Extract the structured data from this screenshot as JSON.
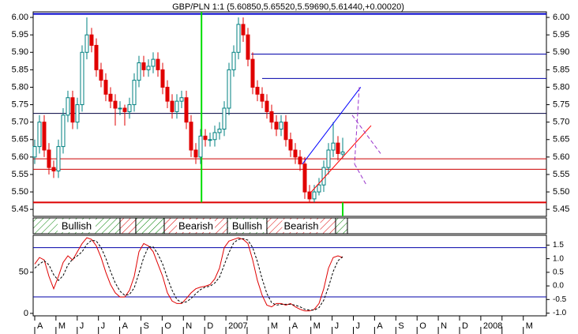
{
  "chart_data": {
    "type": "candlestick",
    "title": "GBP/PLN 1:1 (5.60850,5.65520,5.59690,5.61440,+0.00020)",
    "up_color": "#008080",
    "down_color": "#e00000",
    "open": [
      5.6,
      5.63,
      5.7,
      5.62,
      5.57,
      5.56,
      5.63,
      5.72,
      5.77,
      5.7,
      5.75,
      5.9,
      5.95,
      5.92,
      5.85,
      5.82,
      5.78,
      5.76,
      5.74,
      5.74,
      5.73,
      5.75,
      5.82,
      5.87,
      5.85,
      5.86,
      5.88,
      5.85,
      5.8,
      5.76,
      5.73,
      5.76,
      5.77,
      5.7,
      5.62,
      5.6,
      5.66,
      5.65,
      5.65,
      5.67,
      5.68,
      5.74,
      5.85,
      5.9,
      5.98,
      5.95,
      5.88,
      5.8,
      5.78,
      5.76,
      5.73,
      5.7,
      5.68,
      5.7,
      5.65,
      5.62,
      5.6,
      5.58,
      5.5,
      5.48,
      5.5,
      5.52,
      5.57,
      5.62,
      5.64,
      5.6085
    ],
    "high": [
      5.65,
      5.72,
      5.72,
      5.64,
      5.59,
      5.65,
      5.74,
      5.79,
      5.79,
      5.77,
      5.92,
      6.0,
      5.97,
      5.94,
      5.87,
      5.84,
      5.8,
      5.78,
      5.76,
      5.75,
      5.77,
      5.84,
      5.89,
      5.89,
      5.88,
      5.9,
      5.9,
      5.87,
      5.82,
      5.78,
      5.78,
      5.79,
      5.79,
      5.72,
      5.64,
      5.68,
      5.68,
      5.67,
      5.69,
      5.7,
      5.76,
      5.87,
      5.92,
      6.0,
      6.0,
      5.97,
      5.9,
      5.82,
      5.8,
      5.78,
      5.75,
      5.72,
      5.72,
      5.72,
      5.67,
      5.64,
      5.62,
      5.6,
      5.52,
      5.52,
      5.54,
      5.59,
      5.64,
      5.7,
      5.66,
      5.6552
    ],
    "low": [
      5.58,
      5.61,
      5.6,
      5.55,
      5.54,
      5.54,
      5.61,
      5.7,
      5.68,
      5.68,
      5.73,
      5.88,
      5.9,
      5.83,
      5.8,
      5.76,
      5.74,
      5.69,
      5.72,
      5.69,
      5.71,
      5.73,
      5.8,
      5.83,
      5.83,
      5.84,
      5.83,
      5.78,
      5.74,
      5.71,
      5.71,
      5.74,
      5.68,
      5.6,
      5.58,
      5.58,
      5.63,
      5.63,
      5.63,
      5.65,
      5.66,
      5.72,
      5.83,
      5.88,
      5.93,
      5.86,
      5.78,
      5.76,
      5.74,
      5.71,
      5.68,
      5.66,
      5.66,
      5.63,
      5.6,
      5.58,
      5.56,
      5.48,
      5.47,
      5.47,
      5.49,
      5.5,
      5.55,
      5.6,
      5.59,
      5.5969
    ],
    "close": [
      5.63,
      5.7,
      5.62,
      5.57,
      5.56,
      5.63,
      5.72,
      5.77,
      5.7,
      5.75,
      5.9,
      5.95,
      5.92,
      5.85,
      5.82,
      5.78,
      5.76,
      5.74,
      5.74,
      5.73,
      5.75,
      5.82,
      5.87,
      5.85,
      5.86,
      5.88,
      5.85,
      5.8,
      5.76,
      5.73,
      5.76,
      5.77,
      5.7,
      5.62,
      5.6,
      5.66,
      5.65,
      5.65,
      5.67,
      5.68,
      5.74,
      5.85,
      5.9,
      5.98,
      5.95,
      5.88,
      5.8,
      5.78,
      5.76,
      5.73,
      5.7,
      5.68,
      5.7,
      5.65,
      5.62,
      5.6,
      5.58,
      5.5,
      5.48,
      5.5,
      5.52,
      5.57,
      5.62,
      5.64,
      5.61,
      5.6144
    ],
    "xlim": [
      -0.33,
      108
    ],
    "xticks": [
      {
        "value": 0,
        "label": "A"
      },
      {
        "value": 4.48,
        "label": "M"
      },
      {
        "value": 8.97,
        "label": "J"
      },
      {
        "value": 13.45,
        "label": "J"
      },
      {
        "value": 17.93,
        "label": "A"
      },
      {
        "value": 22.42,
        "label": "S"
      },
      {
        "value": 26.9,
        "label": "O"
      },
      {
        "value": 31.38,
        "label": "N"
      },
      {
        "value": 35.87,
        "label": "D"
      },
      {
        "value": 40.35,
        "label": "2007"
      },
      {
        "value": 44.83,
        "label": null
      },
      {
        "value": 49.32,
        "label": "M"
      },
      {
        "value": 53.8,
        "label": "A"
      },
      {
        "value": 58.28,
        "label": "M"
      },
      {
        "value": 62.77,
        "label": "J"
      },
      {
        "value": 67.25,
        "label": "J"
      },
      {
        "value": 71.73,
        "label": "A"
      },
      {
        "value": 76.22,
        "label": "S"
      },
      {
        "value": 80.7,
        "label": "O"
      },
      {
        "value": 85.18,
        "label": "N"
      },
      {
        "value": 89.67,
        "label": "D"
      },
      {
        "value": 94.15,
        "label": "2008"
      },
      {
        "value": 98.63,
        "label": null
      },
      {
        "value": 103.12,
        "label": "M"
      }
    ],
    "ylim": [
      5.43,
      6.016
    ],
    "yticks": [
      {
        "value": 6,
        "label": "6.00"
      },
      5.95,
      {
        "value": 5.9,
        "label": "5.90"
      },
      5.85,
      {
        "value": 5.8,
        "label": "5.80"
      },
      5.75,
      {
        "value": 5.7,
        "label": "5.70"
      },
      5.65,
      {
        "value": 5.6,
        "label": "5.60"
      },
      5.55,
      {
        "value": 5.5,
        "label": "5.50"
      },
      5.45
    ],
    "hlines": [
      {
        "value": 6.01,
        "color": "#0000cc",
        "width": 2
      },
      {
        "value": 5.895,
        "color": "#0000aa",
        "start": 45.7
      },
      {
        "value": 5.825,
        "color": "#0000aa",
        "start": 48
      },
      {
        "value": 5.725,
        "color": "#000040"
      },
      {
        "value": 5.595,
        "color": "#cc0000"
      },
      {
        "value": 5.565,
        "color": "#cc0000"
      },
      {
        "value": 5.47,
        "color": "#dd0000",
        "width": 2
      }
    ],
    "vlines": [
      {
        "x": 35.2,
        "from": 5.47,
        "to": 6.016,
        "color": "#00dd00",
        "width": 2
      },
      {
        "x": 65,
        "from": 5.43,
        "to": 5.47,
        "color": "#00dd00",
        "width": 2
      }
    ],
    "trendlines": [
      {
        "x": [
          56.5,
          68.8
        ],
        "y": [
          5.58,
          5.8
        ],
        "color": "#0000ff"
      },
      {
        "x": [
          57.7,
          71
        ],
        "y": [
          5.49,
          5.69
        ],
        "color": "#ff0000"
      },
      {
        "x": [
          68.5,
          67.5
        ],
        "y": [
          5.8,
          5.58
        ],
        "color": "#9933cc",
        "dash": true
      },
      {
        "x": [
          67.5,
          70
        ],
        "y": [
          5.58,
          5.52
        ],
        "color": "#9933cc",
        "dash": true
      },
      {
        "x": [
          67,
          73
        ],
        "y": [
          5.72,
          5.61
        ],
        "color": "#9933cc",
        "dash": true
      }
    ],
    "signals": [
      {
        "start": -0.33,
        "end": 18,
        "color": "#008000",
        "label": "Bullish"
      },
      {
        "start": 18,
        "end": 21.33,
        "color": "#dd0000"
      },
      {
        "start": 21.33,
        "end": 27.33,
        "color": "#008000"
      },
      {
        "start": 27.33,
        "end": 40.67,
        "color": "#dd0000",
        "label": "Bearish"
      },
      {
        "start": 40.67,
        "end": 49,
        "color": "#008000",
        "label": "Bullish"
      },
      {
        "start": 49,
        "end": 63.5,
        "color": "#dd0000",
        "label": "Bearish"
      },
      {
        "start": 63.5,
        "end": 66,
        "color": "#008000"
      }
    ],
    "indicator": {
      "ylim": [
        -3,
        95
      ],
      "yticks": [
        0,
        50
      ],
      "y2lim": [
        -1.1,
        1.86
      ],
      "y2ticks": [
        1.5,
        {
          "value": 1,
          "label": "1.0"
        },
        0.5,
        {
          "value": 0,
          "label": "0.0"
        },
        -0.5,
        {
          "value": -1,
          "label": "-1.0"
        }
      ],
      "levels": [
        {
          "value": 80,
          "color": "#0000aa"
        },
        {
          "value": 20,
          "color": "#0000aa"
        }
      ],
      "series": [
        {
          "color": "#e00000",
          "values": [
            60,
            68,
            65,
            45,
            30,
            45,
            62,
            70,
            65,
            75,
            85,
            92,
            90,
            82,
            68,
            50,
            35,
            25,
            20,
            20,
            28,
            45,
            75,
            85,
            82,
            75,
            60,
            45,
            25,
            15,
            12,
            12,
            18,
            25,
            30,
            32,
            33,
            35,
            42,
            55,
            80,
            88,
            90,
            92,
            90,
            85,
            65,
            40,
            22,
            10,
            8,
            12,
            12,
            10,
            12,
            8,
            5,
            3,
            3,
            5,
            12,
            30,
            55,
            68,
            70,
            68
          ]
        },
        {
          "color": "#000000",
          "dash": true,
          "values": [
            55,
            60,
            64,
            59,
            47,
            40,
            46,
            59,
            66,
            70,
            75,
            84,
            89,
            88,
            80,
            67,
            51,
            37,
            27,
            22,
            23,
            31,
            49,
            68,
            81,
            81,
            72,
            60,
            43,
            28,
            17,
            13,
            14,
            18,
            24,
            29,
            32,
            33,
            37,
            44,
            59,
            74,
            86,
            90,
            91,
            89,
            80,
            63,
            42,
            24,
            13,
            10,
            11,
            11,
            11,
            10,
            8,
            5,
            4,
            4,
            7,
            16,
            32,
            51,
            64,
            69
          ]
        }
      ]
    }
  }
}
